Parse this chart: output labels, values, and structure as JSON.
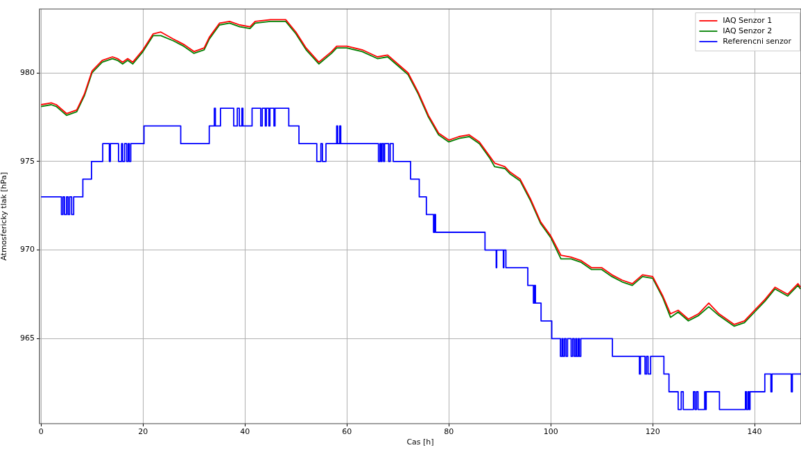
{
  "chart_data": {
    "type": "line",
    "xlabel": "Cas [h]",
    "ylabel": "Atmosfericky tlak [hPa]",
    "xlim": [
      -0.3,
      149.1
    ],
    "xticks": [
      0,
      20,
      40,
      60,
      80,
      100,
      120,
      140
    ],
    "ylim": [
      960.2,
      983.6
    ],
    "yticks": [
      965,
      970,
      975,
      980
    ],
    "grid": true,
    "legend": "top right",
    "marker": "none",
    "line_style": "solid",
    "series": [
      {
        "name": "IAQ Senzor 1",
        "color": "#ff0000",
        "x": [
          0,
          2,
          3,
          5,
          7,
          8.5,
          10,
          12,
          14,
          15,
          16,
          17,
          18,
          20,
          22,
          23.5,
          26,
          28,
          30,
          32,
          33,
          35,
          37,
          39,
          41,
          42,
          45,
          48,
          50,
          52,
          54.5,
          57,
          58,
          60,
          63,
          66,
          68,
          70,
          72,
          74,
          76,
          78,
          80,
          82,
          84,
          86,
          88,
          89,
          91,
          92,
          94,
          96,
          98,
          100,
          102,
          104,
          106,
          108,
          110,
          112,
          114,
          116,
          118,
          120,
          122,
          123.5,
          125,
          127,
          129,
          131,
          133,
          136,
          138,
          140,
          142,
          144,
          146.5,
          148.5,
          149
        ],
        "values": [
          978.2,
          978.3,
          978.2,
          977.7,
          977.9,
          978.8,
          980.1,
          980.7,
          980.9,
          980.8,
          980.6,
          980.8,
          980.6,
          981.3,
          982.2,
          982.3,
          981.9,
          981.6,
          981.2,
          981.4,
          982.0,
          982.8,
          982.9,
          982.7,
          982.6,
          982.9,
          983.0,
          983.0,
          982.3,
          981.4,
          980.6,
          981.2,
          981.5,
          981.5,
          981.3,
          980.9,
          981.0,
          980.5,
          980.0,
          978.9,
          977.6,
          976.6,
          976.2,
          976.4,
          976.5,
          976.1,
          975.3,
          974.9,
          974.7,
          974.4,
          974.0,
          972.9,
          971.6,
          970.8,
          969.7,
          969.6,
          969.4,
          969.0,
          969.0,
          968.6,
          968.3,
          968.1,
          968.6,
          968.5,
          967.4,
          966.4,
          966.6,
          966.1,
          966.4,
          967.0,
          966.4,
          965.8,
          966.0,
          966.6,
          967.2,
          967.9,
          967.5,
          968.1,
          967.9
        ]
      },
      {
        "name": "IAQ Senzor 2",
        "color": "#008000",
        "x": [
          0,
          2,
          3,
          5,
          7,
          8.5,
          10,
          12,
          14,
          15,
          16,
          17,
          18,
          20,
          22,
          23.5,
          26,
          28,
          30,
          32,
          33,
          35,
          37,
          39,
          41,
          42,
          45,
          48,
          50,
          52,
          54.5,
          57,
          58,
          60,
          63,
          66,
          68,
          70,
          72,
          74,
          76,
          78,
          80,
          82,
          84,
          86,
          88,
          89,
          91,
          92,
          94,
          96,
          98,
          100,
          102,
          104,
          106,
          108,
          110,
          112,
          114,
          116,
          118,
          120,
          122,
          123.5,
          125,
          127,
          129,
          131,
          133,
          136,
          138,
          140,
          142,
          144,
          146.5,
          148.5,
          149
        ],
        "values": [
          978.1,
          978.2,
          978.1,
          977.6,
          977.8,
          978.7,
          980.0,
          980.6,
          980.8,
          980.7,
          980.5,
          980.7,
          980.5,
          981.2,
          982.1,
          982.1,
          981.8,
          981.5,
          981.1,
          981.3,
          981.9,
          982.7,
          982.8,
          982.6,
          982.5,
          982.8,
          982.9,
          982.9,
          982.2,
          981.3,
          980.5,
          981.1,
          981.4,
          981.4,
          981.2,
          980.8,
          980.9,
          980.4,
          979.9,
          978.8,
          977.5,
          976.5,
          976.1,
          976.3,
          976.4,
          976.0,
          975.2,
          974.7,
          974.6,
          974.3,
          973.9,
          972.8,
          971.5,
          970.7,
          969.5,
          969.5,
          969.3,
          968.9,
          968.9,
          968.5,
          968.2,
          968.0,
          968.5,
          968.4,
          967.3,
          966.2,
          966.5,
          966.0,
          966.3,
          966.8,
          966.3,
          965.7,
          965.9,
          966.5,
          967.1,
          967.8,
          967.4,
          968.0,
          967.8
        ]
      },
      {
        "name": "Referencni senzor",
        "color": "#0000ff",
        "type": "step",
        "x": [
          0,
          4,
          4.3,
          4.6,
          5,
          5.3,
          5.6,
          6,
          6.4,
          8.2,
          9.9,
          12.1,
          13.4,
          13.6,
          15.2,
          15.8,
          16,
          16.4,
          16.8,
          17.1,
          17.3,
          17.6,
          20.2,
          27.4,
          33,
          34,
          34.2,
          35.2,
          37.8,
          38.5,
          38.9,
          39.4,
          39.6,
          41.4,
          43.1,
          43.4,
          44,
          44.2,
          44.7,
          44.9,
          45.7,
          45.9,
          48.6,
          50.6,
          54.1,
          54.9,
          55.2,
          55.9,
          58,
          58.2,
          58.6,
          58.8,
          66.2,
          66.5,
          66.7,
          66.9,
          67.2,
          67.4,
          68.2,
          68.5,
          69.1,
          72.5,
          74.2,
          75.6,
          77,
          77.2,
          77.4,
          87.1,
          89.3,
          89.4,
          90.7,
          90.8,
          91.2,
          95.5,
          96.6,
          96.8,
          97,
          98.1,
          100.2,
          101.9,
          102.2,
          102.4,
          102.7,
          103,
          103.3,
          104,
          104.3,
          104.6,
          104.9,
          105.1,
          105.4,
          105.6,
          105.9,
          112.1,
          117.4,
          117.6,
          118.5,
          118.8,
          119.1,
          119.6,
          122.2,
          123.2,
          125,
          125.6,
          126,
          128,
          128.3,
          128.6,
          128.9,
          130.2,
          130.4,
          130.5,
          133.1,
          138.2,
          138.4,
          138.7,
          138.9,
          139.1,
          142,
          143.2,
          143.4,
          147.2,
          147.4,
          149.1
        ],
        "values": [
          973,
          972,
          973,
          972,
          973,
          972,
          973,
          972,
          973,
          974,
          975,
          976,
          975,
          976,
          975,
          976,
          975,
          976,
          975,
          976,
          975,
          976,
          977,
          976,
          977,
          978,
          977,
          978,
          977,
          978,
          977,
          978,
          977,
          978,
          977,
          978,
          977,
          978,
          977,
          978,
          977,
          978,
          977,
          976,
          975,
          976,
          975,
          976,
          977,
          976,
          977,
          976,
          975,
          976,
          975,
          976,
          975,
          976,
          975,
          976,
          975,
          974,
          973,
          972,
          971,
          972,
          971,
          970,
          969,
          970,
          969,
          970,
          969,
          968,
          967,
          968,
          967,
          966,
          965,
          964,
          965,
          964,
          965,
          964,
          965,
          964,
          965,
          964,
          965,
          964,
          965,
          964,
          965,
          964,
          963,
          964,
          963,
          964,
          963,
          964,
          963,
          962,
          961,
          962,
          961,
          962,
          961,
          962,
          961,
          962,
          961,
          962,
          961,
          962,
          961,
          962,
          961,
          962,
          963,
          962,
          963,
          962,
          963,
          963
        ]
      }
    ]
  }
}
